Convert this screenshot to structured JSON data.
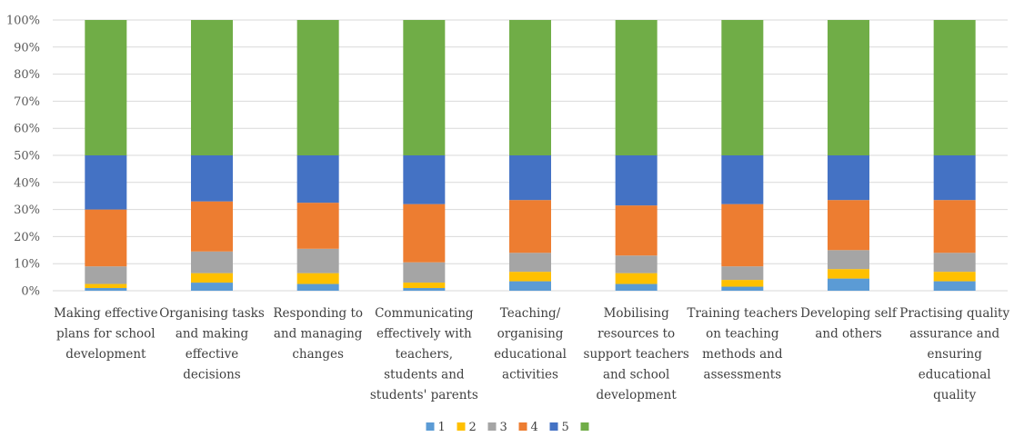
{
  "chart_data": {
    "type": "bar",
    "stacked": true,
    "title": "",
    "xlabel": "",
    "ylabel": "",
    "ylim": [
      0,
      100
    ],
    "y_tick_labels": [
      "0%",
      "10%",
      "20%",
      "30%",
      "40%",
      "50%",
      "60%",
      "70%",
      "80%",
      "90%",
      "100%"
    ],
    "grid": true,
    "legend_position": "bottom",
    "categories": [
      "Making effective plans for school development",
      "Organising tasks and making effective decisions",
      "Responding to and managing changes",
      "Communicating effectively with teachers, students and students' parents",
      "Teaching/ organising educational activities",
      "Mobilising resources to support teachers and school development",
      "Training teachers on teaching methods and assessments",
      "Developing self and others",
      "Practising quality assurance and ensuring educational quality"
    ],
    "category_lines": [
      [
        "Making effective",
        "plans for school",
        "development"
      ],
      [
        "Organising tasks",
        "and making",
        "effective",
        "decisions"
      ],
      [
        "Responding to",
        "and managing",
        "changes"
      ],
      [
        "Communicating",
        "effectively with",
        "teachers,",
        "students and",
        "students' parents"
      ],
      [
        "Teaching/",
        "organising",
        "educational",
        "activities"
      ],
      [
        "Mobilising",
        "resources to",
        "support teachers",
        "and school",
        "development"
      ],
      [
        "Training teachers",
        "on teaching",
        "methods and",
        "assessments"
      ],
      [
        "Developing self",
        "and others"
      ],
      [
        "Practising quality",
        "assurance and",
        "ensuring",
        "educational",
        "quality"
      ]
    ],
    "series": [
      {
        "name": "1",
        "color": "#5b9bd5",
        "values": [
          1.0,
          3.0,
          2.5,
          1.0,
          3.5,
          2.5,
          1.5,
          4.5,
          3.5
        ]
      },
      {
        "name": "2",
        "color": "#ffc000",
        "values": [
          1.5,
          3.5,
          4.0,
          2.0,
          3.5,
          4.0,
          2.5,
          3.5,
          3.5
        ]
      },
      {
        "name": "3",
        "color": "#a5a5a5",
        "values": [
          6.5,
          8.0,
          9.0,
          7.5,
          7.0,
          6.5,
          5.0,
          7.0,
          7.0
        ]
      },
      {
        "name": "4",
        "color": "#ed7d31",
        "values": [
          21.0,
          18.5,
          17.0,
          21.5,
          19.5,
          18.5,
          23.0,
          18.5,
          19.5
        ]
      },
      {
        "name": "5",
        "color": "#4472c4",
        "values": [
          20.0,
          17.0,
          17.5,
          18.0,
          16.5,
          18.5,
          18.0,
          16.5,
          16.5
        ]
      },
      {
        "name": "",
        "color": "#70ad47",
        "values": [
          50.0,
          50.0,
          50.0,
          50.0,
          50.0,
          50.0,
          50.0,
          50.0,
          50.0
        ]
      }
    ]
  }
}
